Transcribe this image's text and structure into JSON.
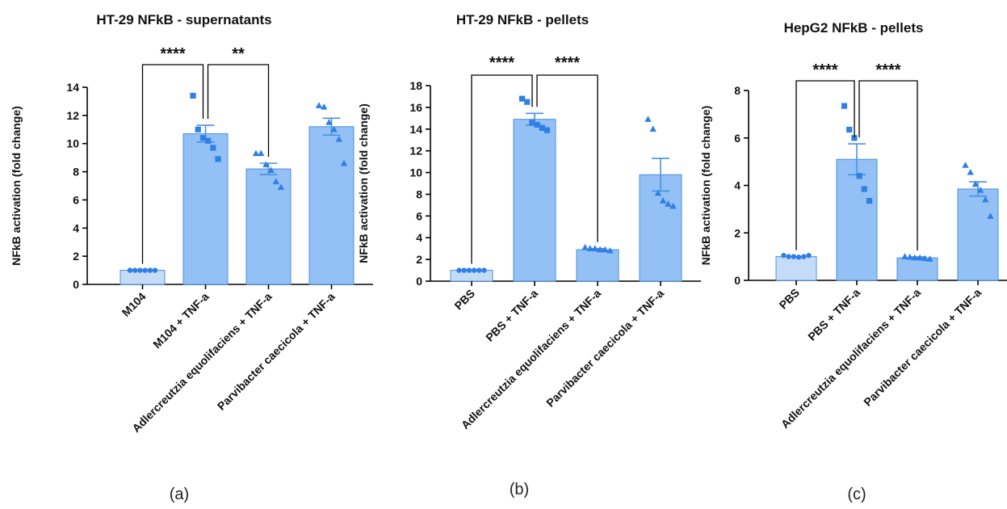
{
  "colors": {
    "control_bar": "#c5dcf8",
    "treat_bar": "#93c0f5",
    "bar_edge": "#4a90e2",
    "point": "#2f7fe6",
    "axis": "#000000"
  },
  "chart_data": [
    {
      "type": "bar",
      "panel_label": "(a)",
      "title": "HT-29 NFkB - supernatants",
      "ylabel": "NFkB activation (fold change)",
      "ylim": [
        0,
        14
      ],
      "yticks": [
        0,
        2,
        4,
        6,
        8,
        10,
        12,
        14
      ],
      "categories": [
        "M104",
        "M104 + TNF-a",
        "Adlercreutzia equolifaciens + TNF-a",
        "Parvibacter caecicola + TNF-a"
      ],
      "values": [
        1.0,
        10.7,
        8.2,
        11.2
      ],
      "errors": [
        0.0,
        0.6,
        0.4,
        0.6
      ],
      "points": [
        [
          1.0,
          1.0,
          1.0,
          1.0,
          1.0,
          1.0
        ],
        [
          13.4,
          11.0,
          10.4,
          10.2,
          9.7,
          8.9
        ],
        [
          9.3,
          9.3,
          8.5,
          8.1,
          7.3,
          6.9
        ],
        [
          12.7,
          12.6,
          11.5,
          11.0,
          10.3,
          8.6
        ]
      ],
      "comparisons": [
        {
          "from": 0,
          "to": 1,
          "label": "****"
        },
        {
          "from": 1,
          "to": 2,
          "label": "**"
        }
      ]
    },
    {
      "type": "bar",
      "panel_label": "(b)",
      "title": "HT-29 NFkB - pellets",
      "ylabel": "NFkB activation (fold change)",
      "ylim": [
        0,
        18
      ],
      "yticks": [
        0,
        2,
        4,
        6,
        8,
        10,
        12,
        14,
        16,
        18
      ],
      "categories": [
        "PBS",
        "PBS + TNF-a",
        "Adlercreutzia equolifaciens + TNF-a",
        "Parvibacter caecicola + TNF-a"
      ],
      "values": [
        1.0,
        14.9,
        2.9,
        9.8
      ],
      "errors": [
        0.0,
        0.55,
        0.1,
        1.5
      ],
      "points": [
        [
          1.0,
          1.0,
          1.0,
          1.0,
          1.0,
          1.0
        ],
        [
          16.8,
          16.5,
          14.6,
          14.4,
          14.1,
          13.9
        ],
        [
          3.1,
          3.0,
          3.0,
          2.9,
          2.9,
          2.8
        ],
        [
          14.9,
          14.0,
          8.1,
          7.4,
          7.1,
          6.9
        ]
      ],
      "comparisons": [
        {
          "from": 0,
          "to": 1,
          "label": "****"
        },
        {
          "from": 1,
          "to": 2,
          "label": "****"
        }
      ]
    },
    {
      "type": "bar",
      "panel_label": "(c)",
      "title": "HepG2 NFkB - pellets",
      "ylabel": "NFkB activation (fold change)",
      "ylim": [
        0,
        8
      ],
      "yticks": [
        0,
        2,
        4,
        6,
        8
      ],
      "categories": [
        "PBS",
        "PBS + TNF-a",
        "Adlercreutzia equolifaciens + TNF-a",
        "Parvibacter caecicola + TNF-a"
      ],
      "values": [
        1.0,
        5.1,
        0.95,
        3.85
      ],
      "errors": [
        0.0,
        0.65,
        0.04,
        0.3
      ],
      "points": [
        [
          1.05,
          1.0,
          1.0,
          0.98,
          1.0,
          1.05
        ],
        [
          7.35,
          6.35,
          6.0,
          4.4,
          3.85,
          3.35
        ],
        [
          1.0,
          0.98,
          0.95,
          0.95,
          0.92,
          0.9
        ],
        [
          4.85,
          4.55,
          4.05,
          3.8,
          3.4,
          2.7
        ]
      ],
      "comparisons": [
        {
          "from": 0,
          "to": 1,
          "label": "****"
        },
        {
          "from": 1,
          "to": 2,
          "label": "****"
        }
      ]
    }
  ]
}
